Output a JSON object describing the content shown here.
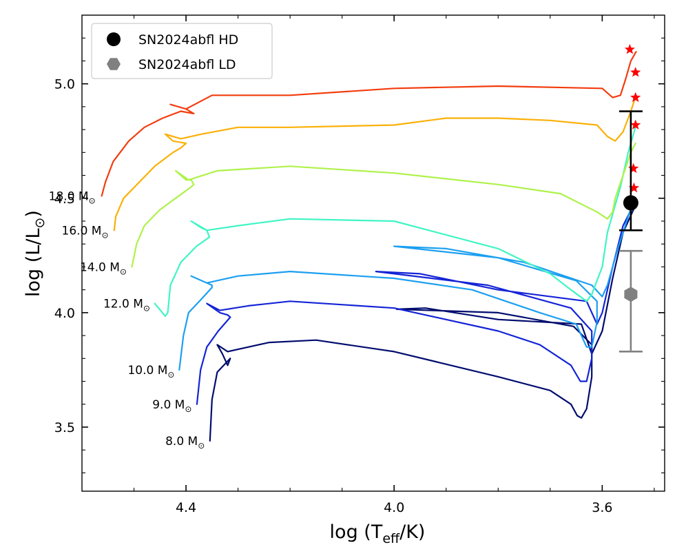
{
  "chart_data": {
    "type": "line",
    "title": "",
    "xlabel": "log (T_eff/K)",
    "ylabel": "log (L/L⊙)",
    "xlabel_parts": {
      "main": "log (T",
      "sub": "eff",
      "tail": "/K)"
    },
    "ylabel_parts": {
      "main": "log (L/L",
      "sub": "⊙",
      "tail": ")"
    },
    "xlim": [
      4.6,
      3.48
    ],
    "ylim": [
      3.22,
      5.3
    ],
    "x_ticks": [
      {
        "value": 4.4,
        "label": "4.4"
      },
      {
        "value": 4.0,
        "label": "4.0"
      },
      {
        "value": 3.6,
        "label": "3.6"
      }
    ],
    "x_minor_ticks": [
      4.5,
      4.3,
      4.2,
      4.1,
      3.9,
      3.8,
      3.7,
      3.5
    ],
    "y_ticks": [
      {
        "value": 3.5,
        "label": "3.5"
      },
      {
        "value": 4.0,
        "label": "4.0"
      },
      {
        "value": 4.5,
        "label": "4.5"
      },
      {
        "value": 5.0,
        "label": "5.0"
      }
    ],
    "y_minor_ticks": [
      3.3,
      3.4,
      3.6,
      3.7,
      3.8,
      3.9,
      4.1,
      4.2,
      4.3,
      4.4,
      4.6,
      4.7,
      4.8,
      4.9,
      5.1,
      5.2
    ],
    "series": [
      {
        "name": "8.0 M⊙",
        "mass_text": "8.0 M",
        "sun_symbol": "⊙",
        "color": "#000c6e",
        "points": [
          [
            4.354,
            3.44
          ],
          [
            4.35,
            3.62
          ],
          [
            4.34,
            3.74
          ],
          [
            4.315,
            3.8
          ],
          [
            4.32,
            3.77
          ],
          [
            4.33,
            3.82
          ],
          [
            4.34,
            3.86
          ],
          [
            4.32,
            3.83
          ],
          [
            4.24,
            3.87
          ],
          [
            4.15,
            3.88
          ],
          [
            4.0,
            3.83
          ],
          [
            3.8,
            3.72
          ],
          [
            3.7,
            3.66
          ],
          [
            3.66,
            3.6
          ],
          [
            3.648,
            3.55
          ],
          [
            3.64,
            3.54
          ],
          [
            3.63,
            3.58
          ],
          [
            3.62,
            3.72
          ],
          [
            3.62,
            3.86
          ],
          [
            3.655,
            3.94
          ],
          [
            3.8,
            4.0
          ],
          [
            3.995,
            4.015
          ],
          [
            3.94,
            4.02
          ],
          [
            3.8,
            3.97
          ],
          [
            3.64,
            3.95
          ],
          [
            3.62,
            3.82
          ],
          [
            3.6,
            3.92
          ],
          [
            3.58,
            4.15
          ],
          [
            3.56,
            4.35
          ],
          [
            3.54,
            4.45
          ]
        ],
        "labelAt": [
          4.36,
          3.44
        ]
      },
      {
        "name": "9.0 M⊙",
        "mass_text": "9.0 M",
        "sun_symbol": "⊙",
        "color": "#1424d6",
        "points": [
          [
            4.379,
            3.6
          ],
          [
            4.372,
            3.75
          ],
          [
            4.36,
            3.85
          ],
          [
            4.338,
            3.92
          ],
          [
            4.315,
            3.98
          ],
          [
            4.32,
            3.99
          ],
          [
            4.335,
            4.0
          ],
          [
            4.36,
            4.04
          ],
          [
            4.335,
            4.01
          ],
          [
            4.28,
            4.03
          ],
          [
            4.2,
            4.05
          ],
          [
            4.0,
            4.02
          ],
          [
            3.8,
            3.92
          ],
          [
            3.72,
            3.86
          ],
          [
            3.66,
            3.77
          ],
          [
            3.642,
            3.7
          ],
          [
            3.63,
            3.7
          ],
          [
            3.62,
            3.8
          ],
          [
            3.62,
            3.92
          ],
          [
            3.66,
            4.02
          ],
          [
            3.82,
            4.12
          ],
          [
            4.035,
            4.18
          ],
          [
            3.95,
            4.17
          ],
          [
            3.8,
            4.1
          ],
          [
            3.63,
            4.05
          ],
          [
            3.61,
            3.95
          ],
          [
            3.6,
            4.0
          ],
          [
            3.58,
            4.2
          ],
          [
            3.56,
            4.38
          ],
          [
            3.54,
            4.47
          ]
        ],
        "labelAt": [
          4.385,
          3.6
        ]
      },
      {
        "name": "10.0 M⊙",
        "mass_text": "10.0 M",
        "sun_symbol": "⊙",
        "color": "#1b9ff0",
        "points": [
          [
            4.413,
            3.75
          ],
          [
            4.405,
            3.9
          ],
          [
            4.395,
            4.0
          ],
          [
            4.37,
            4.06
          ],
          [
            4.35,
            4.11
          ],
          [
            4.35,
            4.12
          ],
          [
            4.36,
            4.13
          ],
          [
            4.39,
            4.16
          ],
          [
            4.36,
            4.13
          ],
          [
            4.3,
            4.16
          ],
          [
            4.2,
            4.18
          ],
          [
            4.0,
            4.15
          ],
          [
            3.85,
            4.1
          ],
          [
            3.72,
            4.0
          ],
          [
            3.65,
            3.95
          ],
          [
            3.63,
            3.85
          ],
          [
            3.62,
            3.85
          ],
          [
            3.61,
            3.96
          ],
          [
            3.61,
            4.05
          ],
          [
            3.65,
            4.14
          ],
          [
            3.8,
            4.24
          ],
          [
            4.0,
            4.29
          ],
          [
            3.9,
            4.28
          ],
          [
            3.75,
            4.22
          ],
          [
            3.62,
            4.12
          ],
          [
            3.6,
            4.07
          ],
          [
            3.59,
            4.12
          ],
          [
            3.57,
            4.28
          ],
          [
            3.55,
            4.42
          ],
          [
            3.54,
            4.49
          ]
        ],
        "labelAt": [
          4.418,
          3.75
        ]
      },
      {
        "name": "12.0 M⊙",
        "mass_text": "12.0 M",
        "sun_symbol": "⊙",
        "color": "#3ff5c4",
        "points": [
          [
            4.46,
            4.04
          ],
          [
            4.44,
            3.985
          ],
          [
            4.435,
            4.0
          ],
          [
            4.43,
            4.12
          ],
          [
            4.41,
            4.22
          ],
          [
            4.38,
            4.29
          ],
          [
            4.355,
            4.33
          ],
          [
            4.36,
            4.36
          ],
          [
            4.37,
            4.37
          ],
          [
            4.39,
            4.4
          ],
          [
            4.36,
            4.36
          ],
          [
            4.3,
            4.38
          ],
          [
            4.2,
            4.41
          ],
          [
            4.0,
            4.4
          ],
          [
            3.8,
            4.28
          ],
          [
            3.7,
            4.17
          ],
          [
            3.66,
            4.1
          ],
          [
            3.63,
            4.05
          ],
          [
            3.62,
            4.08
          ],
          [
            3.6,
            4.2
          ],
          [
            3.59,
            4.35
          ],
          [
            3.565,
            4.55
          ],
          [
            3.55,
            4.7
          ],
          [
            3.535,
            4.82
          ]
        ],
        "labelAt": [
          4.465,
          4.04
        ]
      },
      {
        "name": "14.0 M⊙",
        "mass_text": "14.0 M",
        "sun_symbol": "⊙",
        "color": "#aef24a",
        "points": [
          [
            4.504,
            4.2
          ],
          [
            4.495,
            4.3
          ],
          [
            4.48,
            4.38
          ],
          [
            4.45,
            4.45
          ],
          [
            4.42,
            4.5
          ],
          [
            4.39,
            4.55
          ],
          [
            4.385,
            4.56
          ],
          [
            4.39,
            4.58
          ],
          [
            4.4,
            4.58
          ],
          [
            4.42,
            4.62
          ],
          [
            4.395,
            4.58
          ],
          [
            4.34,
            4.62
          ],
          [
            4.2,
            4.64
          ],
          [
            4.0,
            4.61
          ],
          [
            3.8,
            4.56
          ],
          [
            3.68,
            4.52
          ],
          [
            3.61,
            4.44
          ],
          [
            3.59,
            4.41
          ],
          [
            3.58,
            4.44
          ],
          [
            3.575,
            4.5
          ],
          [
            3.56,
            4.6
          ],
          [
            3.545,
            4.7
          ],
          [
            3.536,
            4.74
          ]
        ],
        "labelAt": [
          4.51,
          4.2
        ]
      },
      {
        "name": "16.0 M⊙",
        "mass_text": "16.0 M",
        "sun_symbol": "⊙",
        "color": "#fbb006",
        "points": [
          [
            4.538,
            4.36
          ],
          [
            4.535,
            4.42
          ],
          [
            4.52,
            4.5
          ],
          [
            4.49,
            4.57
          ],
          [
            4.46,
            4.64
          ],
          [
            4.425,
            4.7
          ],
          [
            4.41,
            4.72
          ],
          [
            4.4,
            4.74
          ],
          [
            4.425,
            4.75
          ],
          [
            4.44,
            4.78
          ],
          [
            4.41,
            4.76
          ],
          [
            4.37,
            4.78
          ],
          [
            4.3,
            4.81
          ],
          [
            4.2,
            4.81
          ],
          [
            4.0,
            4.82
          ],
          [
            3.9,
            4.85
          ],
          [
            3.8,
            4.85
          ],
          [
            3.7,
            4.84
          ],
          [
            3.61,
            4.82
          ],
          [
            3.59,
            4.77
          ],
          [
            3.575,
            4.75
          ],
          [
            3.56,
            4.79
          ],
          [
            3.545,
            4.88
          ],
          [
            3.535,
            4.95
          ]
        ],
        "labelAt": [
          4.545,
          4.36
        ]
      },
      {
        "name": "18.0 M⊙",
        "mass_text": "18.0 M",
        "sun_symbol": "⊙",
        "color": "#f23c0e",
        "points": [
          [
            4.562,
            4.51
          ],
          [
            4.555,
            4.57
          ],
          [
            4.54,
            4.66
          ],
          [
            4.51,
            4.75
          ],
          [
            4.48,
            4.81
          ],
          [
            4.445,
            4.85
          ],
          [
            4.41,
            4.88
          ],
          [
            4.385,
            4.87
          ],
          [
            4.4,
            4.89
          ],
          [
            4.43,
            4.91
          ],
          [
            4.4,
            4.89
          ],
          [
            4.35,
            4.95
          ],
          [
            4.2,
            4.95
          ],
          [
            4.0,
            4.98
          ],
          [
            3.8,
            4.99
          ],
          [
            3.6,
            4.98
          ],
          [
            3.58,
            4.94
          ],
          [
            3.565,
            4.95
          ],
          [
            3.555,
            5.02
          ],
          [
            3.545,
            5.1
          ],
          [
            3.535,
            5.14
          ]
        ],
        "labelAt": [
          4.57,
          4.51
        ]
      }
    ],
    "endpoint_markers": {
      "shape": "star",
      "color": "#ff0000",
      "points": [
        [
          3.547,
          5.15
        ],
        [
          3.536,
          5.05
        ],
        [
          3.536,
          4.94
        ],
        [
          3.536,
          4.82
        ],
        [
          3.54,
          4.63
        ],
        [
          3.539,
          4.545
        ]
      ]
    },
    "observations": [
      {
        "name": "SN2024abfl HD",
        "x": 3.545,
        "y": 4.48,
        "yerr_low": 4.36,
        "yerr_high": 4.88,
        "marker": "circle",
        "color": "#000000"
      },
      {
        "name": "SN2024abfl LD",
        "x": 3.545,
        "y": 4.08,
        "yerr_low": 3.83,
        "yerr_high": 4.27,
        "marker": "hexagon",
        "color": "#808080"
      }
    ],
    "legend": {
      "placement": "top-left",
      "entries": [
        {
          "label": "SN2024abfl HD",
          "marker": "circle",
          "color": "#000000"
        },
        {
          "label": "SN2024abfl LD",
          "marker": "hexagon",
          "color": "#808080"
        }
      ]
    }
  }
}
